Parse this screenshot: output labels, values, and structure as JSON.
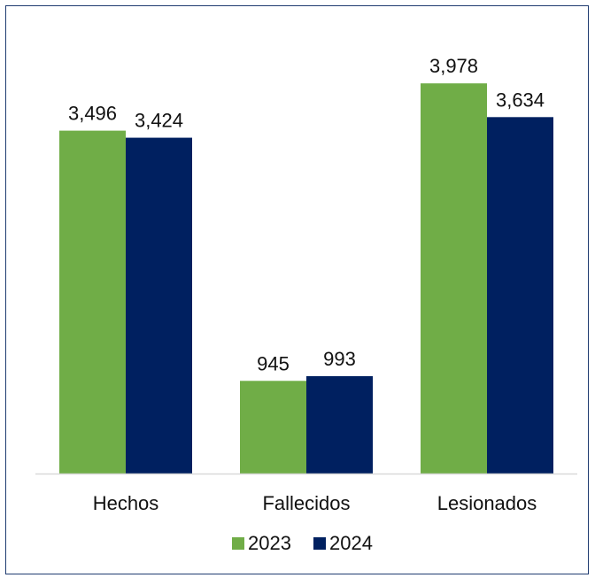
{
  "chart_data": {
    "type": "bar",
    "categories": [
      "Hechos",
      "Fallecidos",
      "Lesionados"
    ],
    "series": [
      {
        "name": "2023",
        "values": [
          3496,
          945,
          3978
        ],
        "color": "#70ad47"
      },
      {
        "name": "2024",
        "values": [
          3424,
          993,
          3634
        ],
        "color": "#002060"
      }
    ],
    "data_labels": [
      [
        "3,496",
        "945",
        "3,978"
      ],
      [
        "3,424",
        "993",
        "3,634"
      ]
    ],
    "ylim": [
      0,
      4400
    ],
    "grid": false,
    "legend": "bottom-center",
    "axis_color": "#d9d9d9"
  }
}
